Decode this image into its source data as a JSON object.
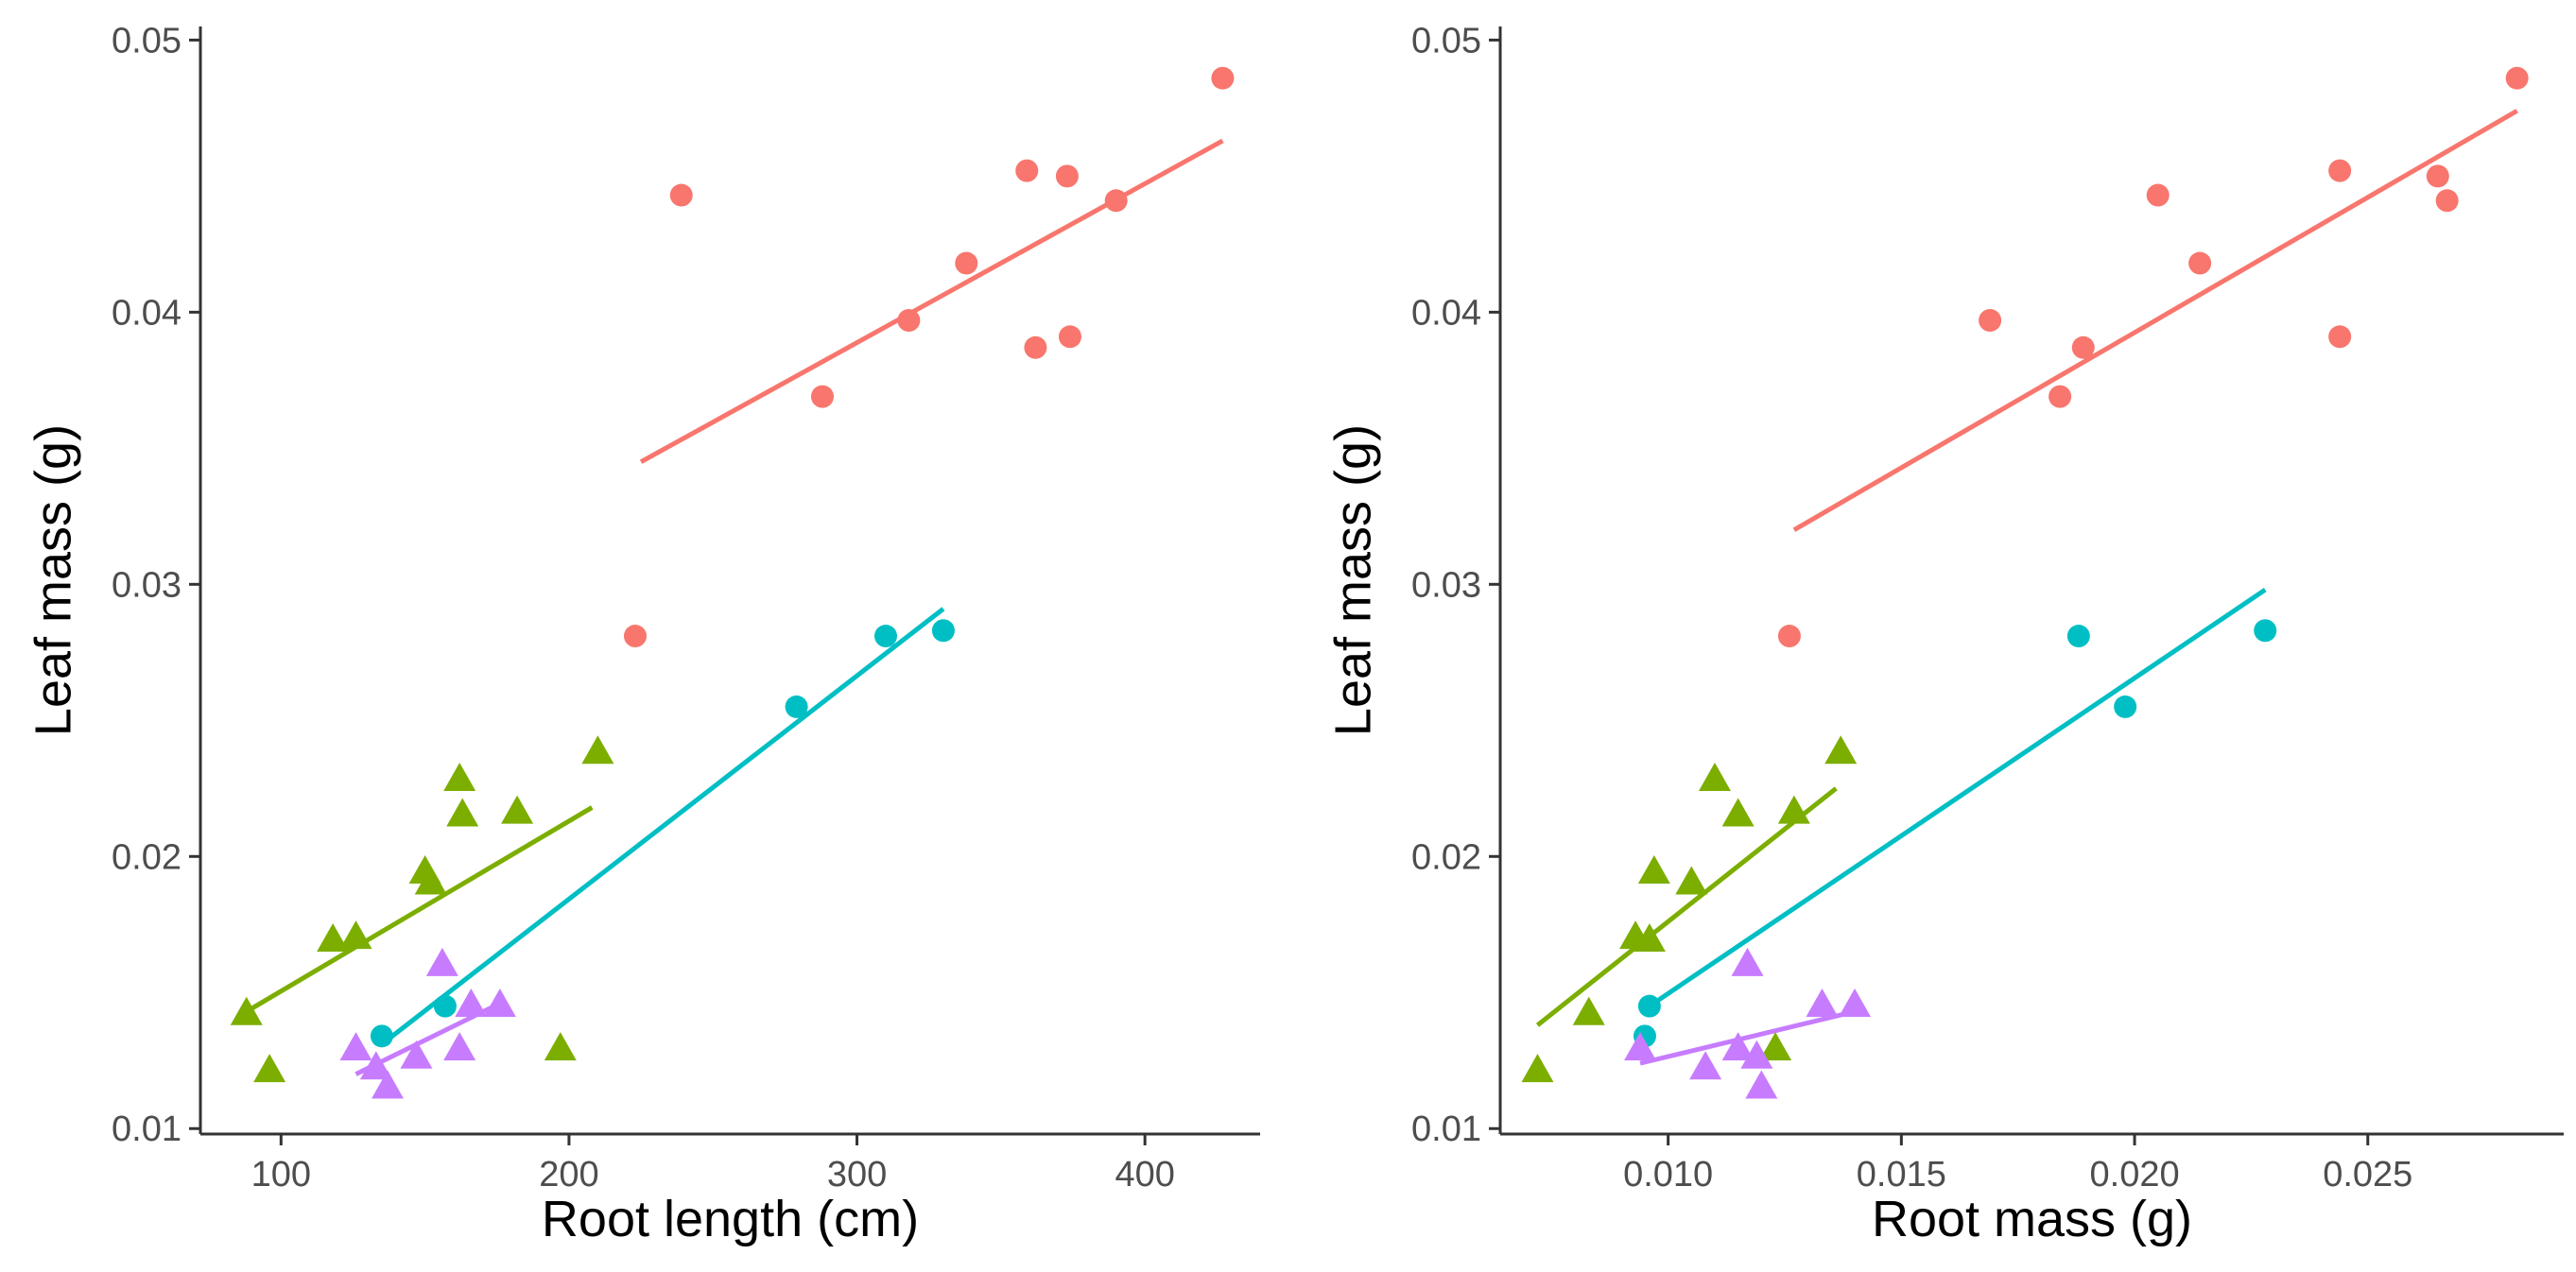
{
  "colors": {
    "red": "#F8766D",
    "green": "#7CAE00",
    "cyan": "#00BFC4",
    "purple": "#C77CFF"
  },
  "chart_data": [
    {
      "type": "scatter",
      "xlabel": "Root length (cm)",
      "ylabel": "Leaf mass (g)",
      "xlim": [
        72,
        440
      ],
      "ylim": [
        0.0098,
        0.0505
      ],
      "xticks": [
        100,
        200,
        300,
        400
      ],
      "xtick_labels": [
        "100",
        "200",
        "300",
        "400"
      ],
      "yticks": [
        0.01,
        0.02,
        0.03,
        0.04,
        0.05
      ],
      "ytick_labels": [
        "0.01",
        "0.02",
        "0.03",
        "0.04",
        "0.05"
      ],
      "series": [
        {
          "name": "red",
          "color": "red",
          "marker": "circle",
          "x": [
            223,
            239,
            288,
            318,
            338,
            359,
            362,
            373,
            374,
            390,
            427
          ],
          "y": [
            0.0281,
            0.0443,
            0.0369,
            0.0397,
            0.0418,
            0.0452,
            0.0387,
            0.045,
            0.0391,
            0.0441,
            0.0486
          ],
          "fit": [
            [
              225,
              0.0345
            ],
            [
              427,
              0.0463
            ]
          ]
        },
        {
          "name": "cyan",
          "color": "cyan",
          "marker": "circle",
          "x": [
            135,
            157,
            279,
            310,
            330
          ],
          "y": [
            0.0134,
            0.0145,
            0.0255,
            0.0281,
            0.0283
          ],
          "fit": [
            [
              135,
              0.0131
            ],
            [
              330,
              0.0291
            ]
          ]
        },
        {
          "name": "green",
          "color": "green",
          "marker": "triangle",
          "x": [
            88,
            96,
            118,
            126,
            150,
            152,
            162,
            163,
            182,
            197,
            210
          ],
          "y": [
            0.0142,
            0.0121,
            0.0169,
            0.017,
            0.0194,
            0.019,
            0.0228,
            0.0215,
            0.0216,
            0.0129,
            0.0238
          ],
          "fit": [
            [
              88,
              0.0143
            ],
            [
              208,
              0.0218
            ]
          ]
        },
        {
          "name": "purple",
          "color": "purple",
          "marker": "triangle",
          "x": [
            126,
            133,
            137,
            147,
            156,
            162,
            166,
            176
          ],
          "y": [
            0.0129,
            0.0122,
            0.0115,
            0.0126,
            0.016,
            0.0129,
            0.0145,
            0.0145
          ],
          "fit": [
            [
              126,
              0.012
            ],
            [
              176,
              0.0146
            ]
          ]
        }
      ]
    },
    {
      "type": "scatter",
      "xlabel": "Root mass (g)",
      "ylabel": "Leaf mass (g)",
      "xlim": [
        0.0064,
        0.0292
      ],
      "ylim": [
        0.0098,
        0.0505
      ],
      "xticks": [
        0.01,
        0.015,
        0.02,
        0.025
      ],
      "xtick_labels": [
        "0.010",
        "0.015",
        "0.020",
        "0.025"
      ],
      "yticks": [
        0.01,
        0.02,
        0.03,
        0.04,
        0.05
      ],
      "ytick_labels": [
        "0.01",
        "0.02",
        "0.03",
        "0.04",
        "0.05"
      ],
      "series": [
        {
          "name": "red",
          "color": "red",
          "marker": "circle",
          "x": [
            0.0126,
            0.0169,
            0.0184,
            0.0189,
            0.0205,
            0.0214,
            0.0244,
            0.0244,
            0.0265,
            0.0267,
            0.0282
          ],
          "y": [
            0.0281,
            0.0397,
            0.0369,
            0.0387,
            0.0443,
            0.0418,
            0.0452,
            0.0391,
            0.045,
            0.0441,
            0.0486
          ],
          "fit": [
            [
              0.0127,
              0.032
            ],
            [
              0.0282,
              0.0474
            ]
          ]
        },
        {
          "name": "cyan",
          "color": "cyan",
          "marker": "circle",
          "x": [
            0.0095,
            0.0096,
            0.0188,
            0.0198,
            0.0228
          ],
          "y": [
            0.0134,
            0.0145,
            0.0281,
            0.0255,
            0.0283
          ],
          "fit": [
            [
              0.0096,
              0.0145
            ],
            [
              0.0228,
              0.0298
            ]
          ]
        },
        {
          "name": "green",
          "color": "green",
          "marker": "triangle",
          "x": [
            0.0072,
            0.0083,
            0.0093,
            0.0096,
            0.0097,
            0.0105,
            0.011,
            0.0115,
            0.0127,
            0.0123,
            0.0137
          ],
          "y": [
            0.0121,
            0.0142,
            0.017,
            0.0169,
            0.0194,
            0.019,
            0.0228,
            0.0215,
            0.0216,
            0.0129,
            0.0238
          ],
          "fit": [
            [
              0.0072,
              0.0138
            ],
            [
              0.0136,
              0.0225
            ]
          ]
        },
        {
          "name": "purple",
          "color": "purple",
          "marker": "triangle",
          "x": [
            0.0094,
            0.0108,
            0.0115,
            0.0117,
            0.0119,
            0.012,
            0.0133,
            0.014
          ],
          "y": [
            0.0129,
            0.0122,
            0.0129,
            0.016,
            0.0126,
            0.0115,
            0.0145,
            0.0145
          ],
          "fit": [
            [
              0.0094,
              0.0124
            ],
            [
              0.014,
              0.0143
            ]
          ]
        }
      ]
    }
  ]
}
